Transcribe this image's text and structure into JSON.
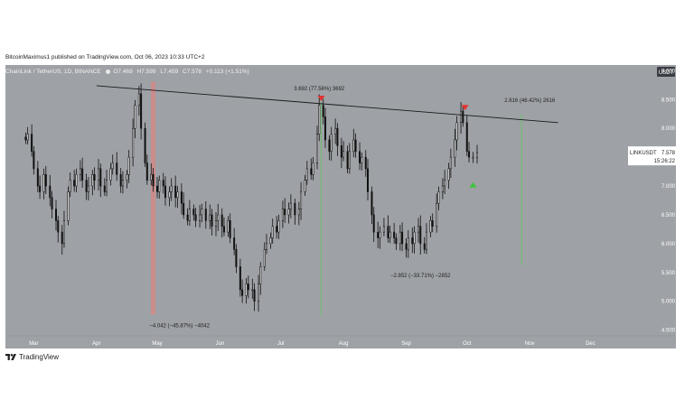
{
  "header": {
    "publisher_line": "BitcoinMaximus1 published on TradingView.com, Oct 06, 2023 10:33 UTC+2"
  },
  "symbol_bar": {
    "name": "ChainLink / TetherUS, 1D, BINANCE",
    "o_label": "O",
    "o": "7.469",
    "h_label": "H",
    "h": "7.599",
    "l_label": "L",
    "l": "7.459",
    "c_label": "C",
    "c": "7.578",
    "change": "+0.113 (+1.51%)"
  },
  "footer": {
    "brand": "TradingView"
  },
  "colors": {
    "background": "#9ea1a6",
    "candle": "#111111",
    "candle_up_body": "#ffffff",
    "trendline": "#1a1a1a",
    "red_zone": "#d08a8a",
    "green_zone": "#6fbf6f",
    "triangle_red": "#e3342f",
    "triangle_green": "#3ec43e",
    "axis_text": "#ffffff"
  },
  "chart_data": {
    "type": "candlestick",
    "currency_label": "USDT",
    "symbol_tag": "LINKUSDT",
    "last_price": "7.578",
    "countdown": "15:26:22",
    "ylim": [
      4.4,
      9.1
    ],
    "y_ticks": [
      "9.000",
      "8.500",
      "8.000",
      "7.500",
      "7.000",
      "6.500",
      "6.000",
      "5.500",
      "5.000",
      "4.500"
    ],
    "x_ticks": [
      "Mar",
      "Apr",
      "May",
      "Jun",
      "Jul",
      "Aug",
      "Sep",
      "Oct",
      "Nov",
      "Dec"
    ],
    "series": [
      {
        "x_start": "2023-02-25",
        "ohlc_closes": [
          7.8,
          7.9,
          7.6,
          7.3,
          7.0,
          6.9,
          7.2,
          7.0,
          6.8,
          6.6,
          6.4,
          6.2,
          6.0,
          6.4,
          6.9,
          7.1,
          7.0,
          7.2,
          7.3,
          7.1,
          6.9,
          7.0,
          7.2,
          7.1,
          7.3,
          7.0,
          6.9,
          7.1,
          7.3,
          7.4,
          7.2,
          7.0,
          7.1,
          7.2,
          7.5,
          8.0,
          8.4,
          8.6,
          8.0,
          7.4,
          7.1,
          7.2,
          7.0,
          6.9,
          7.1,
          7.0,
          6.8,
          6.9,
          7.0,
          6.8,
          6.9,
          6.7,
          6.5,
          6.4,
          6.6,
          6.5,
          6.4,
          6.5,
          6.6,
          6.4,
          6.5,
          6.3,
          6.4,
          6.5,
          6.3,
          6.2,
          6.4,
          6.1,
          5.9,
          5.6,
          5.2,
          5.1,
          5.3,
          5.2,
          5.2,
          5.0,
          5.3,
          5.6,
          5.9,
          6.0,
          6.1,
          6.3,
          6.2,
          6.4,
          6.6,
          6.5,
          6.6,
          6.7,
          6.5,
          6.6,
          6.9,
          7.1,
          7.3,
          7.2,
          7.4,
          7.9,
          8.4,
          8.2,
          7.8,
          7.6,
          7.9,
          8.0,
          7.7,
          7.5,
          7.6,
          7.3,
          7.6,
          7.8,
          7.6,
          7.4,
          7.5,
          7.3,
          6.9,
          6.5,
          6.2,
          6.1,
          6.2,
          6.3,
          6.1,
          6.2,
          6.1,
          6.0,
          6.2,
          6.0,
          5.9,
          6.1,
          6.0,
          6.2,
          6.3,
          6.0,
          5.9,
          6.2,
          6.4,
          6.3,
          6.7,
          6.9,
          7.0,
          7.1,
          7.3,
          7.5,
          7.8,
          8.1,
          8.3,
          8.1,
          7.6,
          7.5,
          7.5,
          7.578
        ],
        "x_end": "2023-10-06"
      }
    ],
    "trendline": {
      "from_date": "2023-04-01",
      "from_price": 8.74,
      "to_date": "2023-11-15",
      "to_price": 8.1
    },
    "measurements": [
      {
        "label": "−4.042 (−45.87%) −4042",
        "kind": "red",
        "date": "2023-04-29",
        "from": 8.81,
        "to": 4.77
      },
      {
        "label": "3.692 (77.56%) 3692",
        "kind": "green",
        "date": "2023-07-21",
        "from": 4.76,
        "to": 8.45
      },
      {
        "label": "−2.852 (−33.71%) −2852",
        "kind": "none",
        "date": "2023-09-03",
        "from": 8.45,
        "to": 5.6
      },
      {
        "label": "2.616 (46.42%) 2616",
        "kind": "green",
        "date": "2023-10-28",
        "from": 5.63,
        "to": 8.25
      }
    ],
    "markers": [
      {
        "type": "red-down",
        "date": "2023-07-21",
        "price": 8.52
      },
      {
        "type": "red-down",
        "date": "2023-09-30",
        "price": 8.36
      },
      {
        "type": "green-up",
        "date": "2023-10-04",
        "price": 7.02
      }
    ]
  }
}
